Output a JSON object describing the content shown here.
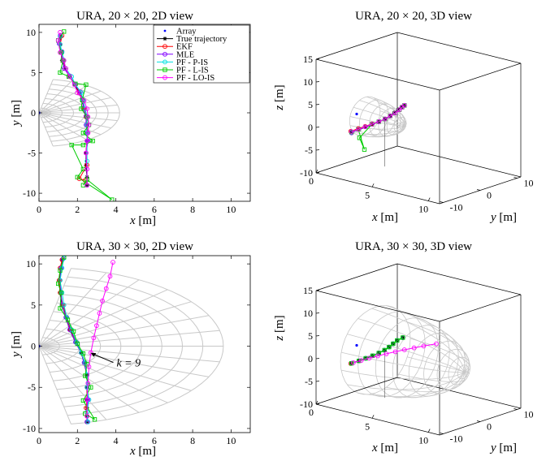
{
  "figure": {
    "colors": {
      "grid": "#c8c8c8",
      "array": "#0000ff",
      "true": "#000000",
      "ekf": "#ff0000",
      "mle": "#8000ff",
      "ppis": "#00e0e0",
      "lis": "#00cc00",
      "lois": "#ff00ff"
    }
  },
  "chart_data": [
    {
      "id": "p1",
      "type": "line",
      "view": "2d",
      "title": "URA, 20 × 20, 2D view",
      "xlabel_var": "x",
      "xlabel_unit": "[m]",
      "ylabel_var": "y",
      "ylabel_unit": "[m]",
      "xlim": [
        0,
        11
      ],
      "ylim": [
        -11,
        11
      ],
      "xticks": [
        0,
        2,
        4,
        6,
        8,
        10
      ],
      "yticks": [
        -10,
        -5,
        0,
        5,
        10
      ],
      "beam": {
        "R": 4.2,
        "rings": 7,
        "spokes": 13,
        "halfAngle": 80
      },
      "legend": {
        "position": "top-right",
        "entries": [
          {
            "key": "array",
            "label": "Array",
            "marker": "dot"
          },
          {
            "key": "true",
            "label": "True trajectory",
            "marker": "star"
          },
          {
            "key": "ekf",
            "label": "EKF",
            "marker": "circle"
          },
          {
            "key": "mle",
            "label": "MLE",
            "marker": "circle"
          },
          {
            "key": "ppis",
            "label": "PF - P-IS",
            "marker": "circle"
          },
          {
            "key": "lis",
            "label": "PF - L-IS",
            "marker": "square"
          },
          {
            "key": "lois",
            "label": "PF - LO-IS",
            "marker": "circle"
          }
        ]
      },
      "series": [
        {
          "key": "true",
          "x": [
            1.15,
            1.1,
            1.15,
            1.2,
            1.35,
            1.6,
            1.85,
            2.1,
            2.25,
            2.35,
            2.45,
            2.5,
            2.5,
            2.5,
            2.45,
            2.45,
            2.5,
            2.5
          ],
          "y": [
            9.5,
            8.5,
            7.5,
            6.5,
            5.5,
            4.5,
            3.5,
            2.5,
            1.5,
            0.5,
            -0.5,
            -1.5,
            -2.5,
            -3.5,
            -5,
            -6.5,
            -8,
            -9
          ]
        },
        {
          "key": "ekf",
          "x": [
            1.2,
            1.1,
            1.15,
            1.25,
            1.4,
            1.6,
            1.9,
            2.1,
            2.3,
            2.35,
            2.45,
            2.5,
            2.55,
            2.5,
            2.45,
            2.5,
            2.1,
            2.4,
            2.5
          ],
          "y": [
            9.6,
            8.5,
            7.5,
            6.5,
            5.5,
            4.5,
            3.5,
            2.5,
            1.5,
            0.5,
            -0.5,
            -1.5,
            -2.5,
            -3.5,
            -5,
            -6.5,
            -8.2,
            -8.4,
            -9
          ]
        },
        {
          "key": "mle",
          "x": [
            1.1,
            1.05,
            1.2,
            1.25,
            1.3,
            1.6,
            1.85,
            2.15,
            2.3,
            2.3,
            2.45,
            2.45,
            2.5,
            2.55,
            2.45,
            2.5,
            2.5
          ],
          "y": [
            9.6,
            8.6,
            7.6,
            6.6,
            5.5,
            4.6,
            3.6,
            2.6,
            1.6,
            0.6,
            -0.4,
            -1.5,
            -2.5,
            -3.5,
            -5,
            -7,
            -9
          ]
        },
        {
          "key": "ppis",
          "x": [
            1.1,
            1.1,
            1.2,
            1.3,
            1.4,
            1.7,
            1.9,
            2.2,
            2.3,
            2.4,
            2.5,
            2.5,
            2.5,
            2.5,
            2.5,
            2.5
          ],
          "y": [
            9.5,
            8.5,
            7.5,
            6.5,
            5.5,
            4.5,
            3.5,
            2.5,
            1.5,
            0.5,
            -0.5,
            -1.5,
            -2.5,
            -3.5,
            -6,
            -9
          ]
        },
        {
          "key": "lis",
          "x": [
            1.3,
            1.0,
            1.15,
            1.25,
            1.1,
            1.55,
            1.9,
            2.45,
            2.25,
            2.2,
            2.5,
            2.6,
            2.3,
            2.8,
            2.3,
            1.7,
            2.3,
            2.0,
            3.8,
            2.5,
            2.3
          ],
          "y": [
            10.1,
            9,
            7.5,
            6.5,
            5,
            4.5,
            3.6,
            3.5,
            1.6,
            0.5,
            -0.5,
            -1.5,
            -2.5,
            -3.5,
            -4,
            -4,
            -7,
            -8,
            -10.8,
            -8.3,
            -9
          ]
        },
        {
          "key": "lois",
          "x": [
            1.1,
            1.0,
            1.1,
            1.3,
            1.4,
            1.6,
            1.85,
            2.0,
            2.35,
            2.5,
            2.55,
            2.6,
            2.55,
            2.5,
            2.45,
            2.5,
            2.5
          ],
          "y": [
            10.0,
            9.0,
            7.5,
            6.5,
            5.5,
            4.5,
            3.5,
            2.5,
            1.5,
            0.5,
            -0.5,
            -1.5,
            -2.5,
            -3.5,
            -5,
            -7,
            -9
          ]
        }
      ]
    },
    {
      "id": "p2",
      "type": "line",
      "view": "3d",
      "title": "URA, 20 × 20, 3D view",
      "xlabel_var": "x",
      "xlabel_unit": "[m]",
      "ylabel_var": "y",
      "ylabel_unit": "[m]",
      "zlabel_var": "z",
      "zlabel_unit": "[m]",
      "xlim": [
        0,
        11
      ],
      "ylim": [
        -11,
        11
      ],
      "zlim": [
        -10,
        15
      ],
      "xticks": [
        0,
        5,
        10
      ],
      "yticks": [
        -10,
        0,
        10
      ],
      "zticks": [
        -10,
        -5,
        0,
        5,
        10,
        15
      ],
      "beam": {
        "R": 4.2,
        "rings": 7,
        "spokes": 13,
        "halfAngle": 80
      },
      "series": [
        {
          "key": "true",
          "x": [
            2.5,
            2.5,
            2.45,
            2.4,
            2.3,
            2.2,
            2.0,
            1.7,
            1.4,
            1.2,
            1.1
          ],
          "y": [
            -9,
            -7,
            -5,
            -3,
            -1,
            1,
            3,
            5,
            7,
            8.5,
            9.5
          ],
          "z": [
            0,
            0,
            0,
            0,
            0,
            0,
            0,
            0,
            0,
            0,
            0
          ]
        },
        {
          "key": "ekf",
          "x": [
            2.5,
            2.45,
            2.4,
            2.35,
            2.3,
            2.2,
            2.0,
            1.8,
            1.5,
            1.25,
            1.1
          ],
          "y": [
            -9.2,
            -7,
            -5,
            -3,
            -1,
            1,
            3,
            5,
            7,
            8.5,
            9.6
          ],
          "z": [
            0.2,
            0.2,
            0.1,
            0.1,
            0,
            0,
            0,
            0,
            0,
            0,
            0
          ]
        },
        {
          "key": "mle",
          "x": [
            2.5,
            2.45,
            2.4,
            2.35,
            2.3,
            2.2,
            2.0,
            1.8,
            1.5,
            1.25,
            1.1
          ],
          "y": [
            -9,
            -7,
            -5,
            -3,
            -1,
            1,
            3,
            5,
            7,
            8.5,
            9.6
          ],
          "z": [
            -0.2,
            0,
            0,
            0,
            0,
            0,
            0,
            0,
            0,
            0,
            0
          ]
        },
        {
          "key": "ppis",
          "x": [
            2.5,
            2.45,
            2.4,
            2.35,
            2.3,
            2.2,
            2.0,
            1.8,
            1.5,
            1.25,
            1.1
          ],
          "y": [
            -9,
            -7,
            -5,
            -3,
            -1,
            1,
            3,
            5,
            7,
            8.5,
            9.6
          ],
          "z": [
            0,
            0,
            0,
            0,
            0,
            0,
            0,
            0,
            0,
            0,
            0
          ]
        },
        {
          "key": "lis",
          "x": [
            2.5,
            2.45,
            2.0,
            3.8,
            2.35,
            2.3,
            2.2,
            2.0,
            1.8,
            1.5,
            1.25,
            1.1
          ],
          "y": [
            -9,
            -7,
            -4,
            -10.8,
            -3,
            -1,
            1,
            3,
            5,
            7,
            8.5,
            9.6
          ],
          "z": [
            0,
            0,
            -5.5,
            0,
            0,
            0,
            0,
            0,
            0,
            0,
            0,
            0
          ]
        },
        {
          "key": "lois",
          "x": [
            2.5,
            2.45,
            2.4,
            2.35,
            2.3,
            2.2,
            2.0,
            1.8,
            1.5,
            1.25,
            1.1
          ],
          "y": [
            -9,
            -7,
            -5,
            -3,
            -1,
            1,
            3,
            5,
            7,
            8.5,
            9.6
          ],
          "z": [
            0.1,
            0,
            0,
            0,
            0,
            0,
            0,
            0,
            0,
            0,
            0
          ]
        }
      ]
    },
    {
      "id": "p3",
      "type": "line",
      "view": "2d",
      "title": "URA, 30 × 30, 2D view",
      "xlabel_var": "x",
      "xlabel_unit": "[m]",
      "ylabel_var": "y",
      "ylabel_unit": "[m]",
      "xlim": [
        0,
        11
      ],
      "ylim": [
        -10.5,
        11
      ],
      "xticks": [
        0,
        2,
        4,
        6,
        8,
        10
      ],
      "yticks": [
        -10,
        -5,
        0,
        5,
        10
      ],
      "beam": {
        "R": 9.6,
        "rings": 9,
        "spokes": 15,
        "halfAngle": 80
      },
      "annotation": {
        "text": "k = 9",
        "x": 2.6,
        "y": -0.8
      },
      "series": [
        {
          "key": "true",
          "x": [
            1.2,
            1.15,
            1.05,
            1.1,
            1.2,
            1.4,
            1.6,
            1.9,
            2.2,
            2.35,
            2.5,
            2.5,
            2.5,
            2.5,
            2.5,
            2.5
          ],
          "y": [
            10.5,
            9.5,
            8,
            6.5,
            5,
            3.5,
            2,
            0.5,
            -0.8,
            -2,
            -3.5,
            -5,
            -6.5,
            -7.5,
            -8.5,
            -9.2
          ]
        },
        {
          "key": "ekf",
          "x": [
            1.2,
            1.1,
            1.05,
            1.1,
            1.25,
            1.45,
            1.65,
            1.95,
            2.2,
            2.4,
            2.5,
            2.5,
            2.5,
            2.45,
            2.5,
            2.5
          ],
          "y": [
            10.5,
            9.5,
            8,
            6.5,
            5,
            3.5,
            2,
            0.5,
            -0.8,
            -2,
            -3.5,
            -5,
            -6.5,
            -7.5,
            -8.5,
            -9.2
          ]
        },
        {
          "key": "mle",
          "x": [
            1.25,
            1.15,
            1.1,
            1.15,
            1.2,
            1.4,
            1.6,
            1.9,
            2.2,
            2.35,
            2.5,
            2.5,
            2.55,
            2.5,
            2.5
          ],
          "y": [
            10.6,
            9.5,
            8,
            6.5,
            5,
            3.5,
            2,
            0.5,
            -0.8,
            -2,
            -3.5,
            -5,
            -6.5,
            -8,
            -9.2
          ]
        },
        {
          "key": "ppis",
          "x": [
            1.3,
            1.2,
            1.1,
            1.2,
            1.3,
            1.45,
            1.7,
            1.95,
            2.2,
            2.4,
            2.5,
            2.5,
            2.6,
            2.5,
            2.55
          ],
          "y": [
            10.7,
            9.5,
            8,
            6.5,
            5,
            3.5,
            2,
            0.5,
            -0.8,
            -2,
            -3.5,
            -5,
            -6.5,
            -8,
            -9.2
          ]
        },
        {
          "key": "lis",
          "x": [
            1.3,
            1.1,
            1.0,
            1.15,
            1.1,
            1.5,
            1.8,
            2.0,
            2.3,
            2.5,
            2.4,
            2.7,
            2.3,
            2.9,
            2.4
          ],
          "y": [
            10.8,
            9.2,
            7.6,
            6.5,
            4.6,
            3.2,
            1.8,
            0.3,
            -0.9,
            -2.2,
            -3.6,
            -5,
            -6.6,
            -8.9,
            -8.2
          ]
        },
        {
          "key": "lois",
          "x": [
            2.5,
            2.5,
            2.55,
            2.6,
            2.7,
            2.85,
            3.0,
            3.15,
            3.3,
            3.5,
            3.7,
            3.85
          ],
          "y": [
            -8.5,
            -6.5,
            -4.5,
            -2.5,
            -0.8,
            1,
            2.5,
            4,
            5.5,
            7,
            8.5,
            10.2
          ]
        }
      ]
    },
    {
      "id": "p4",
      "type": "line",
      "view": "3d",
      "title": "URA, 30 × 30, 3D view",
      "xlabel_var": "x",
      "xlabel_unit": "[m]",
      "ylabel_var": "y",
      "ylabel_unit": "[m]",
      "zlabel_var": "z",
      "zlabel_unit": "[m]",
      "xlim": [
        0,
        11
      ],
      "ylim": [
        -11,
        11
      ],
      "zlim": [
        -10,
        15
      ],
      "xticks": [
        0,
        5,
        10
      ],
      "yticks": [
        -10,
        0,
        10
      ],
      "zticks": [
        -10,
        -5,
        0,
        5,
        10,
        15
      ],
      "beam": {
        "R": 9.6,
        "rings": 9,
        "spokes": 15,
        "halfAngle": 80
      },
      "series": [
        {
          "key": "true",
          "x": [
            2.5,
            2.5,
            2.45,
            2.4,
            2.3,
            2.15,
            1.9,
            1.6,
            1.3,
            1.15
          ],
          "y": [
            -9,
            -7,
            -5,
            -3,
            -1,
            1,
            3,
            5,
            7,
            9
          ],
          "z": [
            0,
            0,
            0,
            0,
            0,
            0,
            0,
            0,
            0,
            0
          ]
        },
        {
          "key": "ekf",
          "x": [
            2.5,
            2.5,
            2.45,
            2.4,
            2.3,
            2.15,
            1.9,
            1.6,
            1.3,
            1.15
          ],
          "y": [
            -9.2,
            -7,
            -5,
            -3,
            -1,
            1,
            3,
            5,
            7,
            9
          ],
          "z": [
            0,
            0,
            0,
            0,
            0,
            0,
            0,
            0,
            0,
            0
          ]
        },
        {
          "key": "mle",
          "x": [
            2.5,
            2.5,
            2.45,
            2.4,
            2.3,
            2.15,
            1.9,
            1.6,
            1.3,
            1.15
          ],
          "y": [
            -9,
            -7,
            -5,
            -3,
            -1,
            1,
            3,
            5,
            7,
            9
          ],
          "z": [
            0,
            0,
            0,
            0,
            0,
            0,
            0,
            0,
            0,
            0
          ]
        },
        {
          "key": "ppis",
          "x": [
            2.5,
            2.5,
            2.45,
            2.4,
            2.3,
            2.15,
            1.9,
            1.6,
            1.3,
            1.15
          ],
          "y": [
            -9,
            -7,
            -5,
            -3,
            -1,
            1,
            3,
            5,
            7,
            9
          ],
          "z": [
            0,
            0,
            0,
            0,
            0,
            0,
            0,
            0,
            0,
            0
          ]
        },
        {
          "key": "lis",
          "x": [
            2.5,
            2.5,
            2.45,
            2.4,
            2.3,
            2.15,
            1.9,
            1.6,
            1.3,
            1.15
          ],
          "y": [
            -9,
            -7,
            -5,
            -3,
            -1,
            1,
            3,
            5,
            7,
            9
          ],
          "z": [
            0,
            0,
            0,
            0,
            0,
            0,
            0,
            0,
            0,
            0
          ]
        },
        {
          "key": "lois",
          "x": [
            2.5,
            2.55,
            2.6,
            2.7,
            2.8,
            2.95,
            3.1,
            3.3,
            3.5,
            3.8
          ],
          "y": [
            -8.5,
            -6.5,
            -4.5,
            -2.5,
            -0.5,
            1.5,
            3.5,
            5.5,
            7.5,
            10
          ],
          "z": [
            0,
            0,
            0,
            0,
            0,
            0,
            0,
            0,
            0,
            0
          ]
        }
      ]
    }
  ]
}
